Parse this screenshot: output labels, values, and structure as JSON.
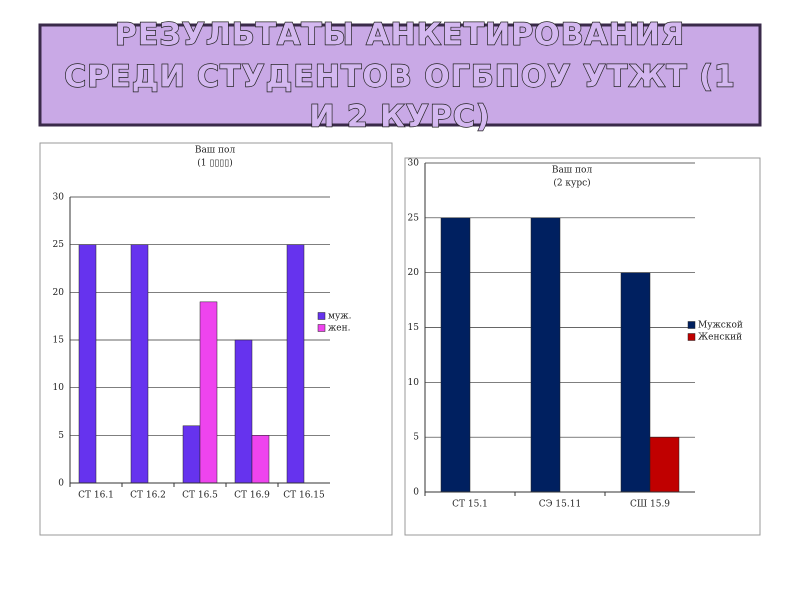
{
  "title_lines": [
    "РЕЗУЛЬТАТЫ АНКЕТИРОВАНИЯ",
    "СРЕДИ СТУДЕНТОВ ОГБПОУ УТЖТ (1",
    "И 2 КУРС)"
  ],
  "chart_data": [
    {
      "type": "bar",
      "title": "Ваш пол",
      "subtitle": "(1 ▯▯▯▯)",
      "categories": [
        "СТ 16.1",
        "СТ 16.2",
        "СТ 16.5",
        "СТ 16.9",
        "СТ 16.15"
      ],
      "series": [
        {
          "name": "муж.",
          "color": "#6633ee",
          "values": [
            25,
            25,
            6,
            15,
            25
          ]
        },
        {
          "name": "жен.",
          "color": "#ee44ee",
          "values": [
            null,
            null,
            19,
            5,
            null
          ]
        }
      ],
      "ylim": [
        0,
        30
      ],
      "yticks": [
        0,
        5,
        10,
        15,
        20,
        25,
        30
      ],
      "grid": true,
      "legend": "right"
    },
    {
      "type": "bar",
      "title": "Ваш пол",
      "subtitle": "(2 курс)",
      "categories": [
        "СТ 15.1",
        "СЭ 15.11",
        "СШ 15.9"
      ],
      "series": [
        {
          "name": "Мужской",
          "color": "#002060",
          "values": [
            25,
            25,
            20
          ]
        },
        {
          "name": "Женский",
          "color": "#c00000",
          "values": [
            null,
            null,
            5
          ]
        }
      ],
      "ylim": [
        0,
        30
      ],
      "yticks": [
        0,
        5,
        10,
        15,
        20,
        25,
        30
      ],
      "grid": true,
      "legend": "right"
    }
  ]
}
